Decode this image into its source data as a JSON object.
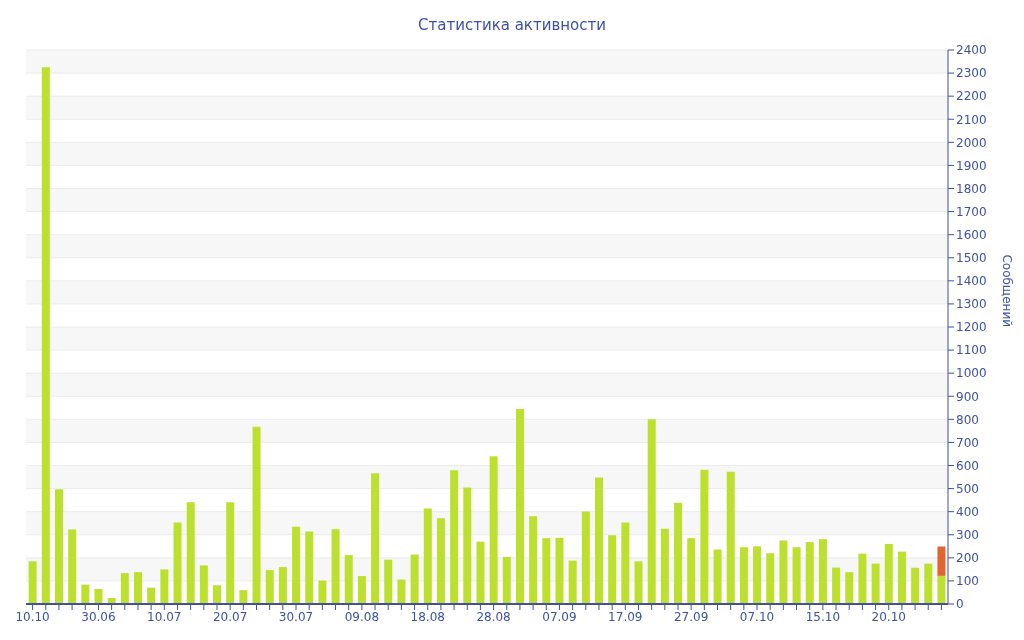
{
  "chart_data": {
    "type": "bar",
    "title": "Статистика активности",
    "ylabel": "Сообщений",
    "categories": [
      "10.10",
      null,
      null,
      null,
      null,
      "30.06",
      null,
      null,
      null,
      null,
      "10.07",
      null,
      null,
      null,
      null,
      "20.07",
      null,
      null,
      null,
      null,
      "30.07",
      null,
      null,
      null,
      null,
      "09.08",
      null,
      null,
      null,
      null,
      "18.08",
      null,
      null,
      null,
      null,
      "28.08",
      null,
      null,
      null,
      null,
      "07.09",
      null,
      null,
      null,
      null,
      "17.09",
      null,
      null,
      null,
      null,
      "27.09",
      null,
      null,
      null,
      null,
      "07.10",
      null,
      null,
      null,
      null,
      "15.10",
      null,
      null,
      null,
      null,
      "20.10",
      null,
      null,
      null,
      null
    ],
    "stacked": true,
    "series": [
      {
        "color": "#bde02e",
        "values": [
          185,
          2325,
          497,
          323,
          84,
          65,
          26,
          134,
          138,
          71,
          150,
          353,
          441,
          167,
          81,
          441,
          60,
          768,
          147,
          160,
          335,
          314,
          102,
          324,
          212,
          121,
          566,
          192,
          106,
          214,
          414,
          371,
          579,
          505,
          270,
          640,
          204,
          845,
          380,
          285,
          287,
          188,
          401,
          548,
          298,
          353,
          185,
          800,
          326,
          439,
          285,
          582,
          236,
          573,
          246,
          250,
          220,
          275,
          246,
          268,
          281,
          158,
          138,
          218,
          175,
          260,
          227,
          157,
          175,
          122
        ]
      },
      {
        "color": "#e0662e",
        "values": [
          null,
          null,
          null,
          null,
          null,
          null,
          null,
          null,
          null,
          null,
          null,
          null,
          null,
          null,
          null,
          null,
          null,
          null,
          null,
          null,
          null,
          null,
          null,
          null,
          null,
          null,
          null,
          null,
          null,
          null,
          null,
          null,
          null,
          null,
          null,
          null,
          null,
          null,
          null,
          null,
          null,
          null,
          null,
          null,
          null,
          null,
          null,
          null,
          null,
          null,
          null,
          null,
          null,
          null,
          null,
          null,
          null,
          null,
          null,
          null,
          null,
          null,
          null,
          null,
          null,
          null,
          null,
          null,
          null,
          127
        ]
      }
    ],
    "ylim": [
      0,
      2400
    ],
    "yticks": [
      0,
      100,
      200,
      300,
      400,
      500,
      600,
      700,
      800,
      900,
      1000,
      1100,
      1200,
      1300,
      1400,
      1500,
      1600,
      1700,
      1800,
      1900,
      2000,
      2100,
      2200,
      2300,
      2400
    ],
    "grid": "y",
    "legend": false
  }
}
